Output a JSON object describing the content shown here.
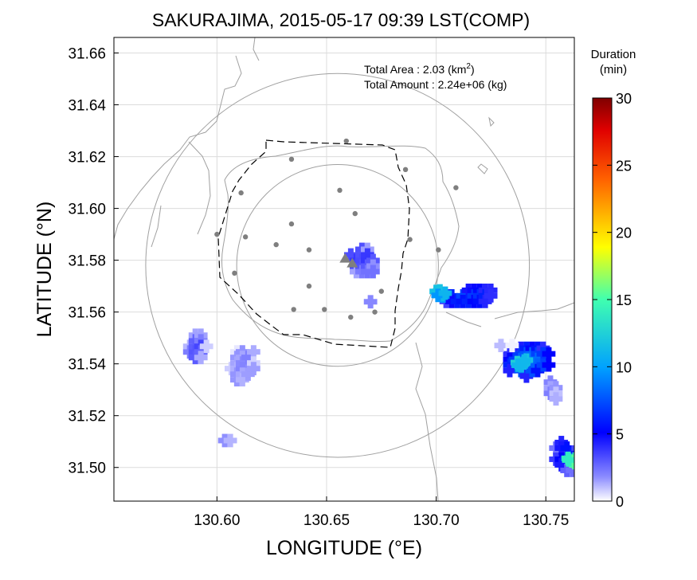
{
  "chart_data": {
    "type": "heatmap",
    "title": "SAKURAJIMA, 2015-05-17 09:39 LST(COMP)",
    "xlabel": "LONGITUDE (°E)",
    "ylabel": "LATITUDE (°N)",
    "xlim": [
      130.553,
      130.763
    ],
    "ylim": [
      31.487,
      31.666
    ],
    "x_ticks": [
      130.6,
      130.65,
      130.7,
      130.75
    ],
    "x_tick_labels": [
      "130.60",
      "130.65",
      "130.70",
      "130.75"
    ],
    "y_ticks": [
      31.5,
      31.52,
      31.54,
      31.56,
      31.58,
      31.6,
      31.62,
      31.64,
      31.66
    ],
    "y_tick_labels": [
      "31.50",
      "31.52",
      "31.54",
      "31.56",
      "31.58",
      "31.60",
      "31.62",
      "31.64",
      "31.66"
    ],
    "grid": true,
    "annotations": {
      "area_label": "Total Area   : 2.03 (km",
      "area_sup": "2",
      "area_close": ")",
      "amount_label": "Total Amount : 2.24e+06 (kg)"
    },
    "colorbar": {
      "title_line1": "Duration",
      "title_line2": "(min)",
      "min": 0,
      "max": 30,
      "ticks": [
        0,
        5,
        10,
        15,
        20,
        25,
        30
      ],
      "tick_labels": [
        "0",
        "5",
        "10",
        "15",
        "20",
        "25",
        "30"
      ]
    },
    "crater": {
      "lon": 130.661,
      "lat": 31.58
    },
    "range_rings": [
      {
        "center": [
          130.655,
          31.578
        ],
        "radius_deg": 0.046
      },
      {
        "center": [
          130.655,
          31.578
        ],
        "radius_deg": 0.0875
      }
    ],
    "stations": [
      [
        130.659,
        31.626
      ],
      [
        130.634,
        31.619
      ],
      [
        130.686,
        31.615
      ],
      [
        130.611,
        31.606
      ],
      [
        130.656,
        31.607
      ],
      [
        130.709,
        31.608
      ],
      [
        130.663,
        31.598
      ],
      [
        130.634,
        31.594
      ],
      [
        130.6,
        31.59
      ],
      [
        130.613,
        31.589
      ],
      [
        130.688,
        31.588
      ],
      [
        130.627,
        31.586
      ],
      [
        130.642,
        31.584
      ],
      [
        130.701,
        31.584
      ],
      [
        130.608,
        31.575
      ],
      [
        130.642,
        31.57
      ],
      [
        130.675,
        31.568
      ],
      [
        130.635,
        31.561
      ],
      [
        130.649,
        31.561
      ],
      [
        130.661,
        31.558
      ],
      [
        130.672,
        31.56
      ]
    ],
    "ash_clusters": [
      {
        "center": [
          130.666,
          31.58
        ],
        "rx": 0.0055,
        "ry": 0.0075,
        "rotate_deg": -35,
        "duration_min": 4
      },
      {
        "center": [
          130.591,
          31.546
        ],
        "rx": 0.004,
        "ry": 0.0085,
        "rotate_deg": 15,
        "duration_min": 3
      },
      {
        "center": [
          130.612,
          31.54
        ],
        "rx": 0.006,
        "ry": 0.008,
        "rotate_deg": 25,
        "duration_min": 2
      },
      {
        "center": [
          130.715,
          31.566
        ],
        "rx": 0.013,
        "ry": 0.004,
        "rotate_deg": -5,
        "duration_min": 7
      },
      {
        "center": [
          130.742,
          31.541
        ],
        "rx": 0.011,
        "ry": 0.007,
        "rotate_deg": -10,
        "duration_min": 9
      },
      {
        "center": [
          130.76,
          31.505
        ],
        "rx": 0.006,
        "ry": 0.008,
        "rotate_deg": 0,
        "duration_min": 6
      },
      {
        "center": [
          130.731,
          31.548
        ],
        "rx": 0.004,
        "ry": 0.003,
        "rotate_deg": 0,
        "duration_min": 2
      },
      {
        "center": [
          130.67,
          31.564
        ],
        "rx": 0.0015,
        "ry": 0.0025,
        "rotate_deg": 0,
        "duration_min": 2
      },
      {
        "center": [
          130.604,
          31.51
        ],
        "rx": 0.003,
        "ry": 0.0012,
        "rotate_deg": 0,
        "duration_min": 2
      },
      {
        "center": [
          130.753,
          31.53
        ],
        "rx": 0.003,
        "ry": 0.006,
        "rotate_deg": 0,
        "duration_min": 2
      }
    ],
    "bright_spots": [
      {
        "center": [
          130.702,
          31.567
        ],
        "duration_min": 12
      },
      {
        "center": [
          130.739,
          31.54
        ],
        "duration_min": 14
      },
      {
        "center": [
          130.762,
          31.503
        ],
        "duration_min": 16
      }
    ]
  }
}
